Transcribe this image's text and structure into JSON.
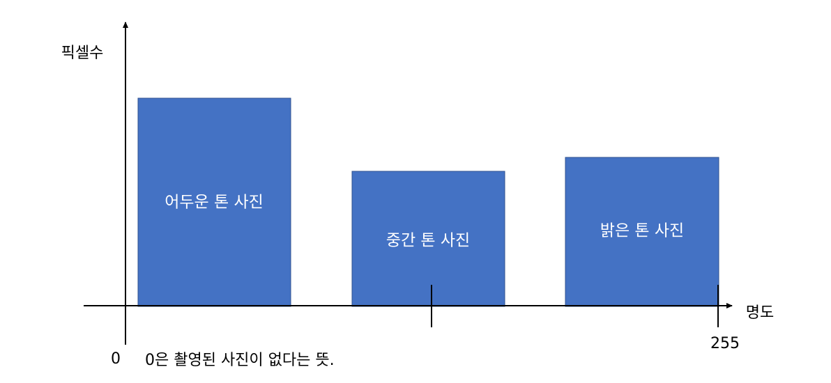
{
  "axes": {
    "y_label": "픽셀수",
    "x_label": "명도",
    "x_min_label": "0",
    "x_max_label": "255"
  },
  "bars": [
    {
      "label": "어두운 톤 사진"
    },
    {
      "label": "중간 톤 사진"
    },
    {
      "label": "밝은 톤 사진"
    }
  ],
  "note": "0은 촬영된 사진이 없다는 뜻."
}
